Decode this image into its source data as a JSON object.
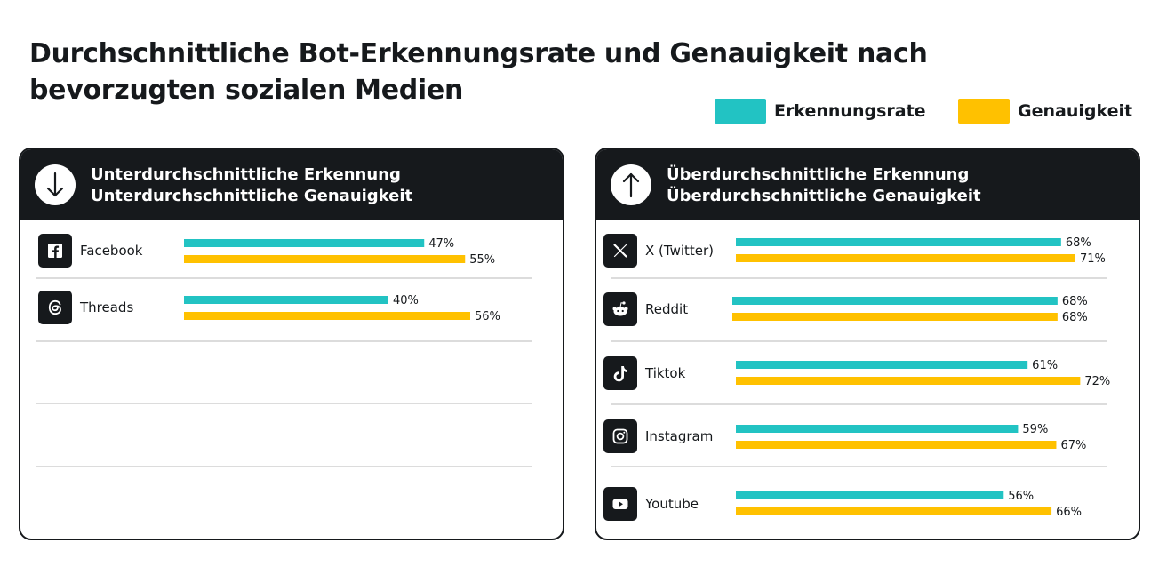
{
  "title_line1": "Durchschnittliche Bot-Erkennungsrate und Genauigkeit nach",
  "title_line2": "bevorzugten sozialen Medien",
  "legend": {
    "detection": {
      "label": "Erkennungsrate",
      "color": "#22c3c3"
    },
    "accuracy": {
      "label": "Genauigkeit",
      "color": "#ffc100"
    }
  },
  "colors": {
    "dark": "#16191c",
    "grid": "#d0d0d0"
  },
  "panels": {
    "left": {
      "line1": "Unterdurchschnittliche Erkennung",
      "line2": "Unterdurchschnittliche Genauigkeit",
      "icon": "arrow-down-icon"
    },
    "right": {
      "line1": "Überdurchschnittliche Erkennung",
      "line2": "Überdurchschnittliche Genauigkeit",
      "icon": "arrow-up-icon"
    }
  },
  "chart_data": [
    {
      "type": "bar",
      "categories": [
        "Facebook",
        "Threads"
      ],
      "icons": [
        "facebook-icon",
        "threads-icon"
      ],
      "series": [
        {
          "name": "Erkennungsrate",
          "values": [
            47,
            40
          ],
          "labels": [
            "47%",
            "40%"
          ]
        },
        {
          "name": "Genauigkeit",
          "values": [
            55,
            56
          ],
          "labels": [
            "55%",
            "56%"
          ]
        }
      ]
    },
    {
      "type": "bar",
      "categories": [
        "X (Twitter)",
        "Reddit",
        "Tiktok",
        "Instagram",
        "Youtube"
      ],
      "icons": [
        "x-twitter-icon",
        "reddit-icon",
        "tiktok-icon",
        "instagram-icon",
        "youtube-icon"
      ],
      "series": [
        {
          "name": "Erkennungsrate",
          "values": [
            68,
            68,
            61,
            59,
            56
          ],
          "labels": [
            "68%",
            "68%",
            "61%",
            "59%",
            "56%"
          ]
        },
        {
          "name": "Genauigkeit",
          "values": [
            71,
            68,
            72,
            67,
            66
          ],
          "labels": [
            "71%",
            "68%",
            "72%",
            "67%",
            "66%"
          ]
        }
      ]
    }
  ]
}
